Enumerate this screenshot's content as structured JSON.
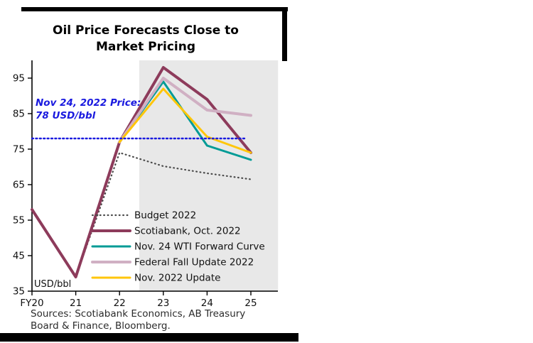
{
  "chart_data": {
    "type": "line",
    "title": "Oil Price Forecasts Close to Market Pricing",
    "unit_label": "USD/bbl",
    "annotation": {
      "text": "Nov 24, 2022 Price: 78 USD/bbl",
      "color": "#1a1adf"
    },
    "x_tick_values": [
      20,
      21,
      22,
      23,
      24,
      25
    ],
    "x_tick_labels": [
      "FY20",
      "21",
      "22",
      "23",
      "24",
      "25"
    ],
    "y_ticks": [
      35,
      45,
      55,
      65,
      75,
      85,
      95
    ],
    "ylim": [
      35,
      100
    ],
    "xlim": [
      20,
      25.62
    ],
    "grid": false,
    "forecast_shading": {
      "from": 22.45,
      "to": 25.62,
      "color": "#e8e8e8"
    },
    "market_price_line": {
      "value": 78,
      "from": 20,
      "to": 24.9,
      "color": "#1a1adf",
      "style": "dotted",
      "width": 2.4
    },
    "legend": {
      "position": "inside-bottom-left"
    },
    "series": [
      {
        "name": "Budget 2022",
        "color": "#4a4a4a",
        "style": "dotted",
        "width": 2.2,
        "points": [
          [
            21,
            39
          ],
          [
            22,
            74
          ],
          [
            23,
            70.2
          ],
          [
            24,
            68.2
          ],
          [
            25,
            66.5
          ]
        ]
      },
      {
        "name": "Scotiabank, Oct. 2022",
        "color": "#8d3b5b",
        "style": "solid",
        "width": 4,
        "points": [
          [
            20,
            58
          ],
          [
            21,
            39
          ],
          [
            22,
            77
          ],
          [
            23,
            98
          ],
          [
            24,
            89
          ],
          [
            25,
            74
          ]
        ]
      },
      {
        "name": "Nov. 24 WTI Forward Curve",
        "color": "#009b96",
        "style": "solid",
        "width": 3,
        "points": [
          [
            22,
            77
          ],
          [
            23,
            94
          ],
          [
            24,
            76
          ],
          [
            25,
            72
          ]
        ]
      },
      {
        "name": "Federal Fall Update 2022",
        "color": "#d0b0c3",
        "style": "solid",
        "width": 4,
        "points": [
          [
            22,
            77
          ],
          [
            23,
            95
          ],
          [
            24,
            86
          ],
          [
            25,
            84.5
          ]
        ]
      },
      {
        "name": "Nov. 2022 Update",
        "color": "#ffc60b",
        "style": "solid",
        "width": 3,
        "points": [
          [
            22,
            77
          ],
          [
            23,
            92
          ],
          [
            24,
            78.5
          ],
          [
            25,
            74
          ]
        ]
      }
    ],
    "source": "Sources: Scotiabank Economics, AB Treasury Board & Finance, Bloomberg."
  }
}
